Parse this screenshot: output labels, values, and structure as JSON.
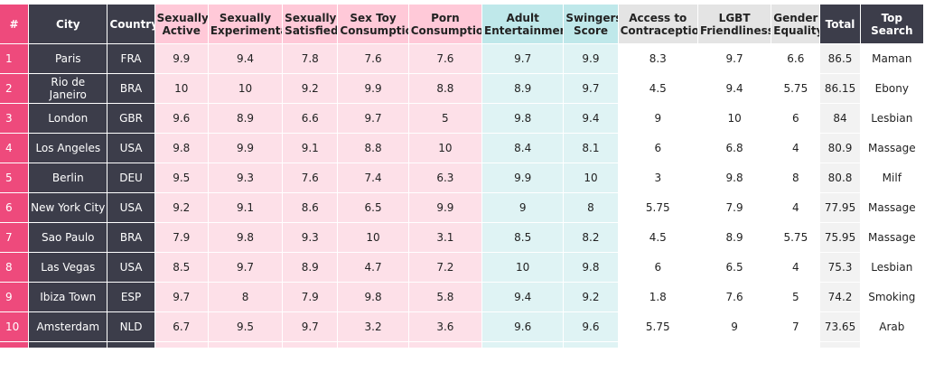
{
  "headers": {
    "rank": "#",
    "city": "City",
    "country": "Country",
    "sexually_active": "Sexually Active",
    "sexually_experimental": "Sexually Experimental",
    "sexually_satisfied": "Sexually Satisfied",
    "sex_toy_consumption": "Sex Toy Consumption",
    "porn_consumption": "Porn Consumption",
    "adult_entertainment": "Adult Entertainment",
    "swingers_score": "Swingers Score",
    "access_to_contraception": "Access to Contraception",
    "lgbt_friendliness": "LGBT Friendliness",
    "gender_equality": "Gender Equality",
    "total": "Total",
    "top_search": "Top Search"
  },
  "rows": [
    {
      "rank": "1",
      "city": "Paris",
      "country": "FRA",
      "sexually_active": "9.9",
      "sexually_experimental": "9.4",
      "sexually_satisfied": "7.8",
      "sex_toy_consumption": "7.6",
      "porn_consumption": "7.6",
      "adult_entertainment": "9.7",
      "swingers_score": "9.9",
      "access_to_contraception": "8.3",
      "lgbt_friendliness": "9.7",
      "gender_equality": "6.6",
      "total": "86.5",
      "top_search": "Maman"
    },
    {
      "rank": "2",
      "city": "Rio de Janeiro",
      "country": "BRA",
      "sexually_active": "10",
      "sexually_experimental": "10",
      "sexually_satisfied": "9.2",
      "sex_toy_consumption": "9.9",
      "porn_consumption": "8.8",
      "adult_entertainment": "8.9",
      "swingers_score": "9.7",
      "access_to_contraception": "4.5",
      "lgbt_friendliness": "9.4",
      "gender_equality": "5.75",
      "total": "86.15",
      "top_search": "Ebony"
    },
    {
      "rank": "3",
      "city": "London",
      "country": "GBR",
      "sexually_active": "9.6",
      "sexually_experimental": "8.9",
      "sexually_satisfied": "6.6",
      "sex_toy_consumption": "9.7",
      "porn_consumption": "5",
      "adult_entertainment": "9.8",
      "swingers_score": "9.4",
      "access_to_contraception": "9",
      "lgbt_friendliness": "10",
      "gender_equality": "6",
      "total": "84",
      "top_search": "Lesbian"
    },
    {
      "rank": "4",
      "city": "Los Angeles",
      "country": "USA",
      "sexually_active": "9.8",
      "sexually_experimental": "9.9",
      "sexually_satisfied": "9.1",
      "sex_toy_consumption": "8.8",
      "porn_consumption": "10",
      "adult_entertainment": "8.4",
      "swingers_score": "8.1",
      "access_to_contraception": "6",
      "lgbt_friendliness": "6.8",
      "gender_equality": "4",
      "total": "80.9",
      "top_search": "Massage"
    },
    {
      "rank": "5",
      "city": "Berlin",
      "country": "DEU",
      "sexually_active": "9.5",
      "sexually_experimental": "9.3",
      "sexually_satisfied": "7.6",
      "sex_toy_consumption": "7.4",
      "porn_consumption": "6.3",
      "adult_entertainment": "9.9",
      "swingers_score": "10",
      "access_to_contraception": "3",
      "lgbt_friendliness": "9.8",
      "gender_equality": "8",
      "total": "80.8",
      "top_search": "Milf"
    },
    {
      "rank": "6",
      "city": "New York City",
      "country": "USA",
      "sexually_active": "9.2",
      "sexually_experimental": "9.1",
      "sexually_satisfied": "8.6",
      "sex_toy_consumption": "6.5",
      "porn_consumption": "9.9",
      "adult_entertainment": "9",
      "swingers_score": "8",
      "access_to_contraception": "5.75",
      "lgbt_friendliness": "7.9",
      "gender_equality": "4",
      "total": "77.95",
      "top_search": "Massage"
    },
    {
      "rank": "7",
      "city": "Sao Paulo",
      "country": "BRA",
      "sexually_active": "7.9",
      "sexually_experimental": "9.8",
      "sexually_satisfied": "9.3",
      "sex_toy_consumption": "10",
      "porn_consumption": "3.1",
      "adult_entertainment": "8.5",
      "swingers_score": "8.2",
      "access_to_contraception": "4.5",
      "lgbt_friendliness": "8.9",
      "gender_equality": "5.75",
      "total": "75.95",
      "top_search": "Massage"
    },
    {
      "rank": "8",
      "city": "Las Vegas",
      "country": "USA",
      "sexually_active": "8.5",
      "sexually_experimental": "9.7",
      "sexually_satisfied": "8.9",
      "sex_toy_consumption": "4.7",
      "porn_consumption": "7.2",
      "adult_entertainment": "10",
      "swingers_score": "9.8",
      "access_to_contraception": "6",
      "lgbt_friendliness": "6.5",
      "gender_equality": "4",
      "total": "75.3",
      "top_search": "Lesbian"
    },
    {
      "rank": "9",
      "city": "Ibiza Town",
      "country": "ESP",
      "sexually_active": "9.7",
      "sexually_experimental": "8",
      "sexually_satisfied": "7.9",
      "sex_toy_consumption": "9.8",
      "porn_consumption": "5.8",
      "adult_entertainment": "9.4",
      "swingers_score": "9.2",
      "access_to_contraception": "1.8",
      "lgbt_friendliness": "7.6",
      "gender_equality": "5",
      "total": "74.2",
      "top_search": "Smoking"
    },
    {
      "rank": "10",
      "city": "Amsterdam",
      "country": "NLD",
      "sexually_active": "6.7",
      "sexually_experimental": "9.5",
      "sexually_satisfied": "9.7",
      "sex_toy_consumption": "3.2",
      "porn_consumption": "3.6",
      "adult_entertainment": "9.6",
      "swingers_score": "9.6",
      "access_to_contraception": "5.75",
      "lgbt_friendliness": "9",
      "gender_equality": "7",
      "total": "73.65",
      "top_search": "Arab"
    }
  ],
  "colors": {
    "rank": "#ee4a7c",
    "dark": "#3c3d4a",
    "pink_header": "#ffc9d8",
    "pink_cell": "#fde0e8",
    "teal_header": "#bfe8ea",
    "teal_cell": "#dff3f4",
    "gray_header": "#e4e4e4",
    "gray_cell": "#f2f2f2"
  }
}
